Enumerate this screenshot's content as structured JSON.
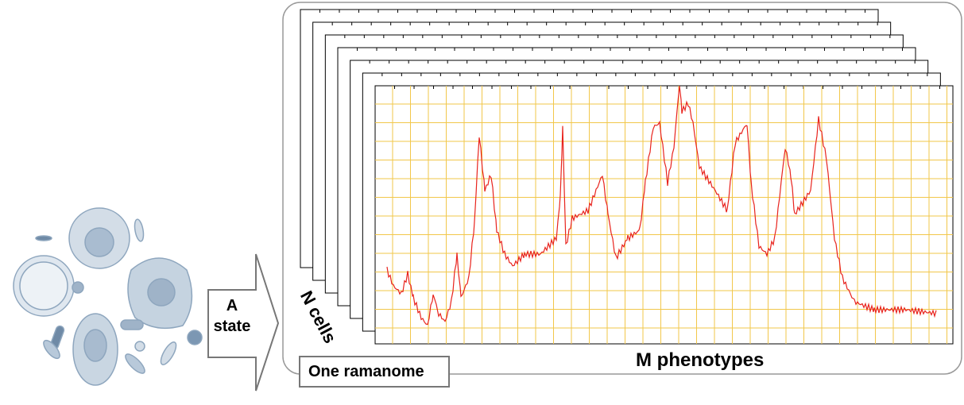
{
  "arrow_label": "A state",
  "stack_label": "N cells",
  "axis_label": "M phenotypes",
  "box_label": "One ramanome"
}
